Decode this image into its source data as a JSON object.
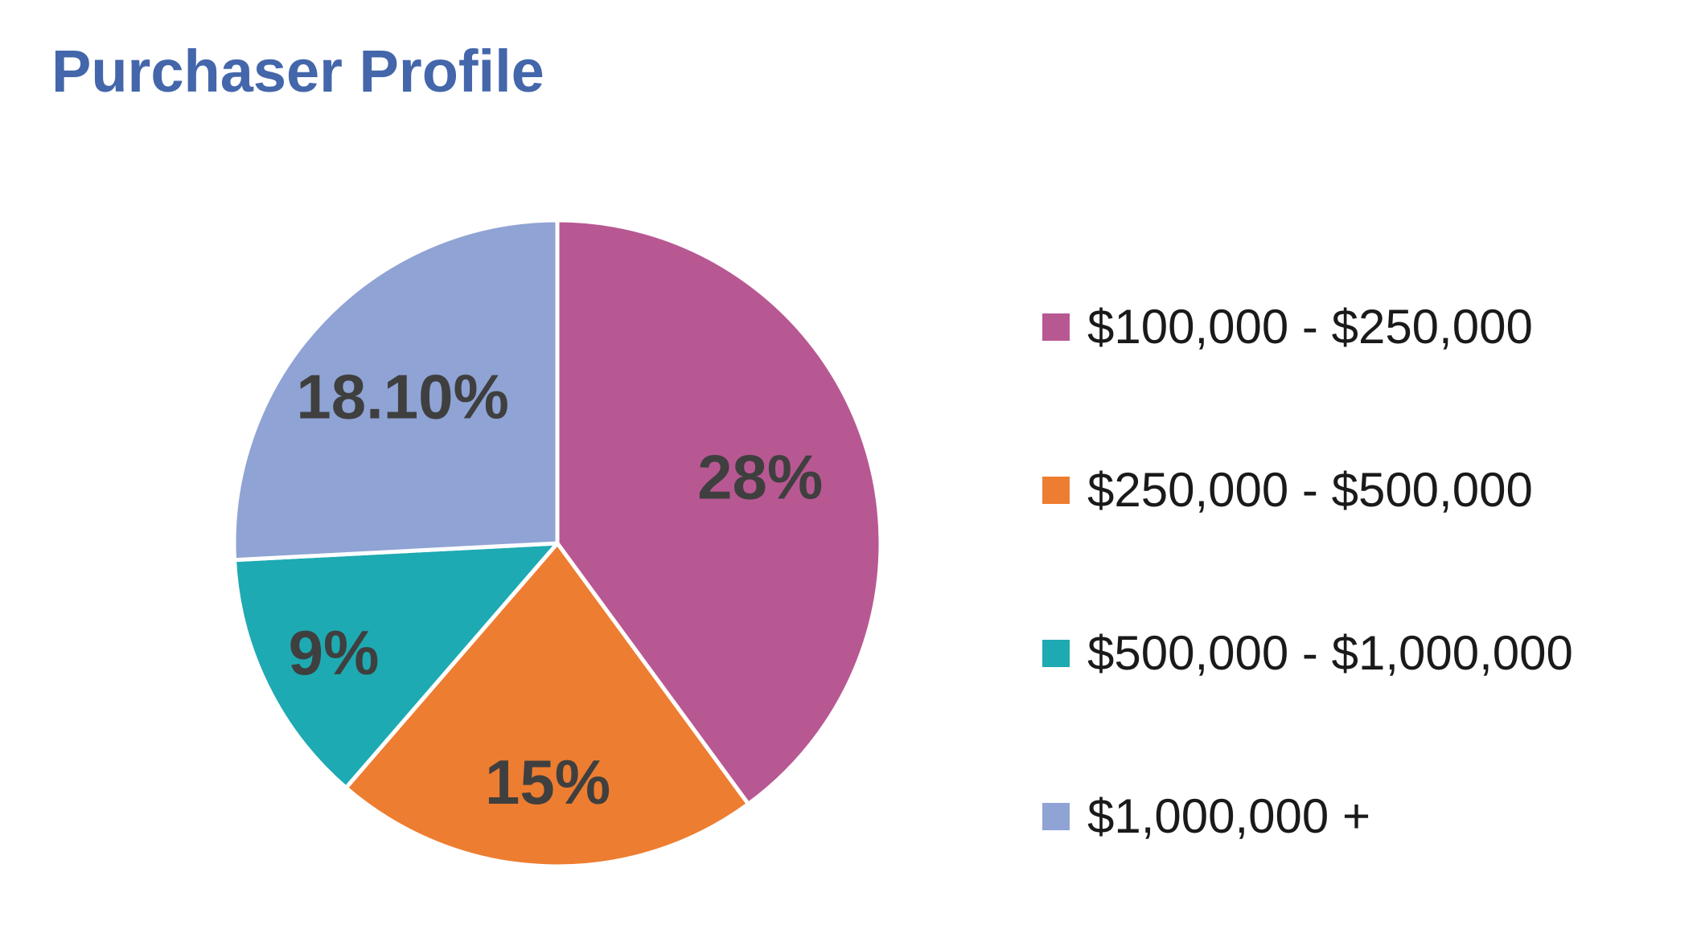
{
  "chart_data": {
    "type": "pie",
    "title": "Purchaser Profile",
    "categories": [
      "$100,000 - $250,000",
      "$250,000 - $500,000",
      "$500,000 - $1,000,000",
      "$1,000,000 +"
    ],
    "values": [
      28,
      15,
      9,
      18.1
    ],
    "data_labels": [
      "28%",
      "15%",
      "9%",
      "18.10%"
    ],
    "colors": [
      "#b85893",
      "#ed7d31",
      "#1eaab2",
      "#8fa3d4"
    ],
    "legend_position": "right",
    "start_angle": "12 o'clock, clockwise"
  }
}
